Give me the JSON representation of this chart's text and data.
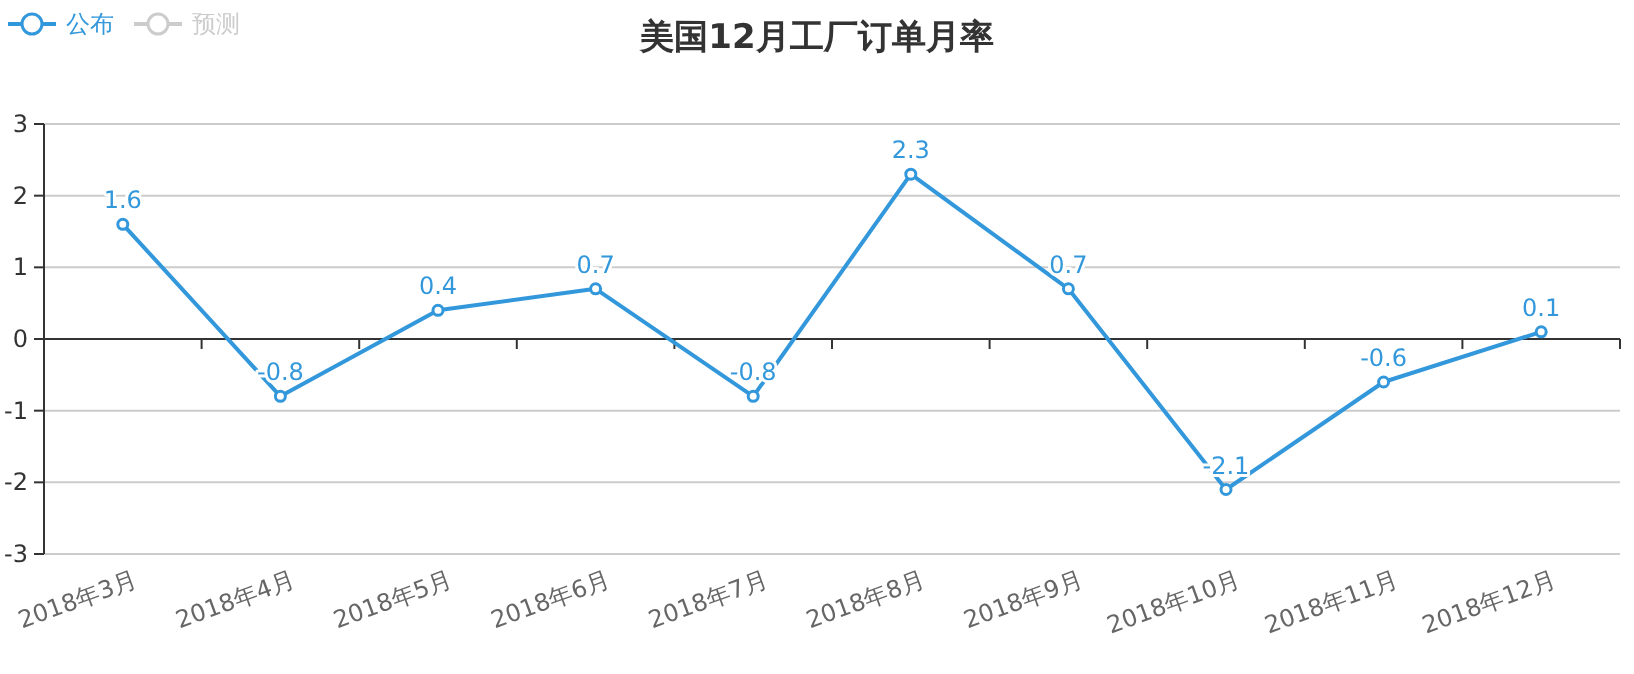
{
  "chart_data": {
    "type": "line",
    "title": "美国12月工厂订单月率",
    "categories": [
      "2018年3月",
      "2018年4月",
      "2018年5月",
      "2018年6月",
      "2018年7月",
      "2018年8月",
      "2018年9月",
      "2018年10月",
      "2018年11月",
      "2018年12月"
    ],
    "series": [
      {
        "name": "公布",
        "color": "#3398db",
        "values": [
          1.6,
          -0.8,
          0.4,
          0.7,
          -0.8,
          2.3,
          0.7,
          -2.1,
          -0.6,
          0.1
        ]
      },
      {
        "name": "预测",
        "color": "#cccccc",
        "values": [
          null,
          null,
          null,
          null,
          null,
          null,
          null,
          null,
          null,
          null
        ]
      }
    ],
    "ylim": [
      -3,
      3
    ],
    "yticks": [
      -3,
      -2,
      -1,
      0,
      1,
      2,
      3
    ],
    "grid": "y",
    "legend": "top left",
    "marker": "circle",
    "data_labels": true
  }
}
